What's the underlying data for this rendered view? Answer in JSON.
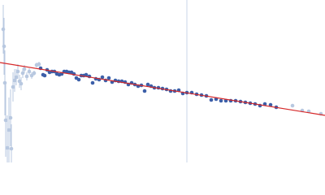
{
  "chart_data": {
    "type": "scatter",
    "xlim": [
      0,
      400
    ],
    "ylim": [
      0,
      200
    ],
    "vline": 230,
    "vline_color": "#c8d4e8",
    "series": [
      {
        "color": "#b8c8e0",
        "x": [
          4,
          5,
          6,
          7,
          9,
          11,
          13,
          14,
          16,
          18,
          20,
          22,
          24,
          26,
          28,
          30,
          33,
          36,
          39,
          42,
          45,
          48,
          360,
          372,
          380,
          395
        ],
        "values": [
          164,
          143,
          98,
          52,
          18,
          40,
          55,
          17,
          93,
          101,
          105,
          112,
          100,
          97,
          110,
          115,
          106,
          112,
          107,
          110,
          120,
          121,
          70,
          64,
          63,
          60
        ],
        "errors": [
          30,
          35,
          40,
          45,
          40,
          40,
          35,
          30,
          18,
          14,
          10,
          9,
          8,
          8,
          6,
          5,
          5,
          4,
          4,
          3,
          3,
          3,
          2,
          2,
          2,
          2
        ]
      },
      {
        "color": "#3c5fa8",
        "x": [
          50,
          53,
          55,
          58,
          61,
          64,
          67,
          70,
          73,
          76,
          79,
          82,
          85,
          88,
          91,
          94,
          97,
          100,
          103,
          106,
          110,
          114,
          118,
          122,
          126,
          130,
          134,
          138,
          142,
          146,
          150,
          154,
          158,
          162,
          166,
          170,
          174,
          178,
          182,
          186,
          190,
          195,
          200,
          205,
          210,
          215,
          220,
          225,
          230,
          236,
          242,
          248,
          254,
          260,
          266,
          272,
          278,
          284,
          290,
          296,
          302,
          308,
          314,
          320,
          326,
          333,
          340
        ],
        "values": [
          116,
          108,
          107,
          114,
          111,
          112,
          112,
          109,
          108,
          109,
          112,
          112,
          111,
          111,
          109,
          104,
          102,
          107,
          107,
          108,
          106,
          98,
          103,
          102,
          105,
          101,
          104,
          99,
          101,
          100,
          100,
          99,
          96,
          98,
          96,
          94,
          95,
          88,
          96,
          94,
          92,
          92,
          91,
          90,
          88,
          88,
          89,
          85,
          86,
          86,
          84,
          83,
          82,
          77,
          78,
          76,
          76,
          76,
          76,
          75,
          74,
          73,
          72,
          70,
          72,
          71,
          68
        ]
      }
    ],
    "fit": {
      "color": "#d62728",
      "x": [
        0,
        400
      ],
      "values": [
        123,
        58
      ]
    }
  }
}
